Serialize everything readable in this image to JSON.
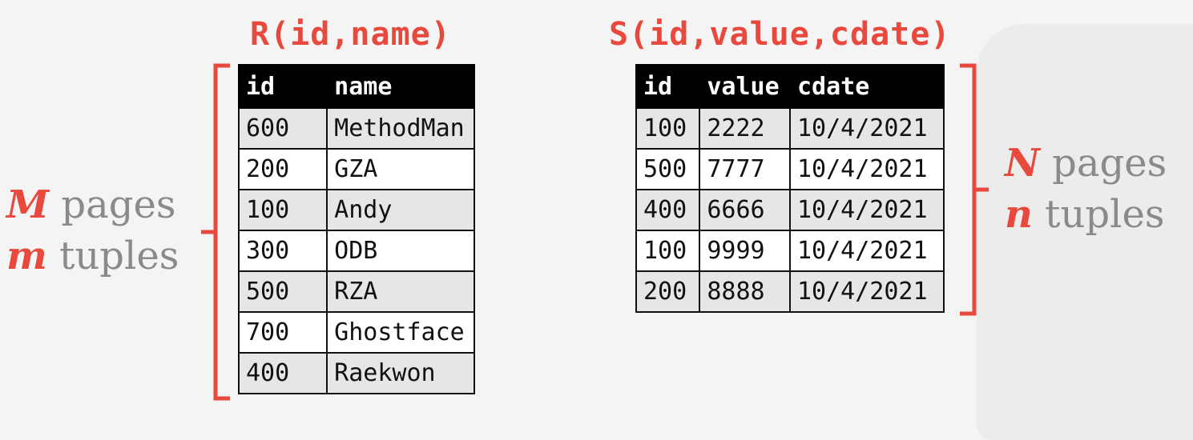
{
  "left_table": {
    "title": "R(id,name)",
    "headers": [
      "id",
      "name"
    ],
    "rows": [
      [
        "600",
        "MethodMan"
      ],
      [
        "200",
        "GZA"
      ],
      [
        "100",
        "Andy"
      ],
      [
        "300",
        "ODB"
      ],
      [
        "500",
        "RZA"
      ],
      [
        "700",
        "Ghostface"
      ],
      [
        "400",
        "Raekwon"
      ]
    ]
  },
  "right_table": {
    "title": "S(id,value,cdate)",
    "headers": [
      "id",
      "value",
      "cdate"
    ],
    "rows": [
      [
        "100",
        "2222",
        "10/4/2021"
      ],
      [
        "500",
        "7777",
        "10/4/2021"
      ],
      [
        "400",
        "6666",
        "10/4/2021"
      ],
      [
        "100",
        "9999",
        "10/4/2021"
      ],
      [
        "200",
        "8888",
        "10/4/2021"
      ]
    ]
  },
  "left_label": {
    "pages_var": "M",
    "pages_text": "pages",
    "tuples_var": "m",
    "tuples_text": "tuples"
  },
  "right_label": {
    "pages_var": "N",
    "pages_text": "pages",
    "tuples_var": "n",
    "tuples_text": "tuples"
  },
  "colors": {
    "accent": "#e8493c",
    "header_bg": "#000000",
    "shade": "#e6e6e6",
    "label_gray": "#8a8a8a"
  }
}
